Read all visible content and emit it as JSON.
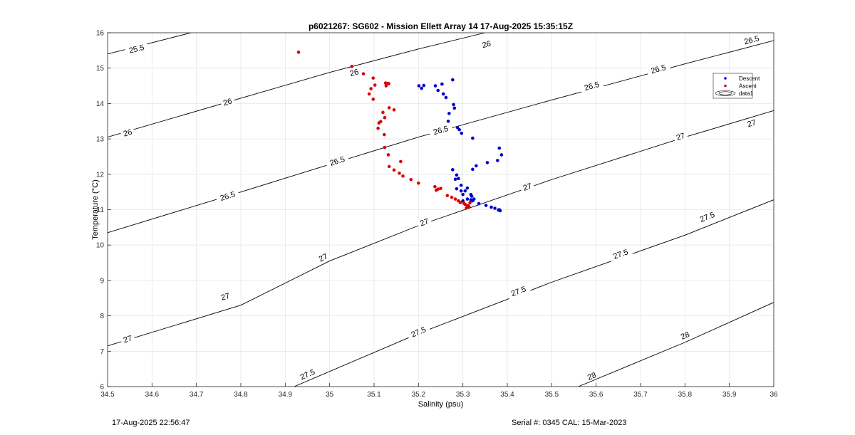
{
  "chart_data": {
    "type": "scatter",
    "title": "p6021267: SG602 - Mission Ellett Array 14 17-Aug-2025 15:35:15Z",
    "xlabel": "Salinity (psu)",
    "ylabel": "Temperature (°C)",
    "xlim": [
      34.5,
      36
    ],
    "ylim": [
      6,
      16
    ],
    "x_ticks": [
      34.5,
      34.6,
      34.7,
      34.8,
      34.9,
      35,
      35.1,
      35.2,
      35.3,
      35.4,
      35.5,
      35.6,
      35.7,
      35.8,
      35.9,
      36
    ],
    "x_tick_labels": [
      "34.5",
      "34.6",
      "34.7",
      "34.8",
      "34.9",
      "35",
      "35.1",
      "35.2",
      "35.3",
      "35.4",
      "35.5",
      "35.6",
      "35.7",
      "35.8",
      "35.9",
      "36"
    ],
    "y_ticks": [
      6,
      7,
      8,
      9,
      10,
      11,
      12,
      13,
      14,
      15,
      16
    ],
    "y_tick_labels": [
      "6",
      "7",
      "8",
      "9",
      "10",
      "11",
      "12",
      "13",
      "14",
      "15",
      "16"
    ],
    "grid": true,
    "legend_position": "top-right",
    "legend": [
      {
        "label": "Descent",
        "color": "#0000cc"
      },
      {
        "label": "Ascent",
        "color": "#dd0000"
      },
      {
        "label": "data1",
        "color": "#000000"
      }
    ],
    "colors": {
      "descent": "#0000cc",
      "ascent": "#dd0000",
      "contour": "#000000",
      "grid": "#e6e6e6"
    },
    "series": [
      {
        "name": "Descent",
        "color": "#0000cc",
        "points": [
          [
            35.201,
            14.5
          ],
          [
            35.207,
            14.43
          ],
          [
            35.212,
            14.51
          ],
          [
            35.238,
            14.5
          ],
          [
            35.244,
            14.37
          ],
          [
            35.253,
            14.55
          ],
          [
            35.256,
            14.27
          ],
          [
            35.262,
            14.17
          ],
          [
            35.277,
            14.67
          ],
          [
            35.279,
            13.97
          ],
          [
            35.281,
            13.87
          ],
          [
            35.269,
            13.72
          ],
          [
            35.267,
            13.5
          ],
          [
            35.288,
            13.32
          ],
          [
            35.292,
            13.26
          ],
          [
            35.297,
            13.16
          ],
          [
            35.322,
            13.02
          ],
          [
            35.382,
            12.74
          ],
          [
            35.387,
            12.55
          ],
          [
            35.378,
            12.39
          ],
          [
            35.355,
            12.33
          ],
          [
            35.33,
            12.24
          ],
          [
            35.322,
            12.14
          ],
          [
            35.277,
            12.13
          ],
          [
            35.286,
            11.98
          ],
          [
            35.283,
            11.86
          ],
          [
            35.29,
            11.88
          ],
          [
            35.286,
            11.59
          ],
          [
            35.296,
            11.69
          ],
          [
            35.296,
            11.53
          ],
          [
            35.305,
            11.53
          ],
          [
            35.31,
            11.61
          ],
          [
            35.3,
            11.43
          ],
          [
            35.31,
            11.3
          ],
          [
            35.318,
            11.28
          ],
          [
            35.322,
            11.25
          ],
          [
            35.325,
            11.3
          ],
          [
            35.32,
            11.38
          ],
          [
            35.318,
            11.43
          ],
          [
            35.3,
            11.25
          ],
          [
            35.336,
            11.17
          ],
          [
            35.352,
            11.12
          ],
          [
            35.364,
            11.07
          ],
          [
            35.372,
            11.04
          ],
          [
            35.38,
            10.99
          ],
          [
            35.384,
            10.97
          ],
          [
            35.382,
            11.0
          ]
        ]
      },
      {
        "name": "Ascent",
        "color": "#dd0000",
        "points": [
          [
            34.93,
            15.45
          ],
          [
            35.05,
            15.05
          ],
          [
            35.076,
            14.84
          ],
          [
            35.098,
            14.72
          ],
          [
            35.102,
            14.52
          ],
          [
            35.093,
            14.42
          ],
          [
            35.089,
            14.27
          ],
          [
            35.098,
            14.12
          ],
          [
            35.127,
            14.5
          ],
          [
            35.126,
            14.58
          ],
          [
            35.133,
            14.56
          ],
          [
            35.132,
            14.57
          ],
          [
            35.12,
            13.75
          ],
          [
            35.134,
            13.88
          ],
          [
            35.145,
            13.82
          ],
          [
            35.124,
            13.6
          ],
          [
            35.115,
            13.49
          ],
          [
            35.111,
            13.45
          ],
          [
            35.109,
            13.3
          ],
          [
            35.123,
            13.12
          ],
          [
            35.124,
            12.76
          ],
          [
            35.132,
            12.55
          ],
          [
            35.134,
            12.22
          ],
          [
            35.145,
            12.12
          ],
          [
            35.16,
            12.36
          ],
          [
            35.157,
            12.03
          ],
          [
            35.165,
            11.95
          ],
          [
            35.183,
            11.85
          ],
          [
            35.2,
            11.75
          ],
          [
            35.237,
            11.65
          ],
          [
            35.24,
            11.55
          ],
          [
            35.244,
            11.58
          ],
          [
            35.25,
            11.6
          ],
          [
            35.265,
            11.4
          ],
          [
            35.275,
            11.35
          ],
          [
            35.283,
            11.3
          ],
          [
            35.29,
            11.25
          ],
          [
            35.294,
            11.2
          ],
          [
            35.302,
            11.18
          ],
          [
            35.305,
            11.15
          ],
          [
            35.31,
            11.1
          ],
          [
            35.312,
            11.12
          ],
          [
            35.308,
            11.05
          ],
          [
            35.314,
            11.07
          ],
          [
            35.316,
            11.2
          ]
        ]
      }
    ],
    "contours": [
      {
        "level": "25.5",
        "points": [
          [
            34.5,
            15.4
          ],
          [
            34.688,
            16.0
          ]
        ],
        "labels": [
          [
            34.565,
            15.55
          ]
        ]
      },
      {
        "level": "26",
        "points": [
          [
            34.5,
            13.05
          ],
          [
            34.8,
            14.15
          ],
          [
            35.0,
            14.88
          ],
          [
            35.2,
            15.54
          ],
          [
            35.35,
            16.0
          ]
        ],
        "labels": [
          [
            34.545,
            13.18
          ],
          [
            34.77,
            14.05
          ],
          [
            35.055,
            14.88
          ],
          [
            35.353,
            15.68
          ]
        ]
      },
      {
        "level": "26.5",
        "points": [
          [
            34.5,
            10.35
          ],
          [
            34.8,
            11.5
          ],
          [
            35.0,
            12.28
          ],
          [
            35.2,
            13.05
          ],
          [
            35.5,
            14.1
          ],
          [
            35.8,
            15.12
          ],
          [
            36.0,
            15.78
          ]
        ],
        "labels": [
          [
            34.77,
            11.39
          ],
          [
            35.017,
            12.38
          ],
          [
            35.25,
            13.25
          ],
          [
            35.74,
            14.98
          ],
          [
            35.59,
            14.5
          ],
          [
            35.95,
            15.8
          ]
        ]
      },
      {
        "level": "27",
        "points": [
          [
            34.5,
            7.15
          ],
          [
            34.8,
            8.3
          ],
          [
            35.0,
            9.55
          ],
          [
            35.2,
            10.55
          ],
          [
            35.5,
            11.85
          ],
          [
            35.8,
            13.05
          ],
          [
            36.0,
            13.8
          ]
        ],
        "labels": [
          [
            34.545,
            7.35
          ],
          [
            34.765,
            8.55
          ],
          [
            34.985,
            9.65
          ],
          [
            35.213,
            10.65
          ],
          [
            35.445,
            11.65
          ],
          [
            35.79,
            13.07
          ],
          [
            35.95,
            13.45
          ]
        ]
      },
      {
        "level": "27.5",
        "points": [
          [
            34.92,
            6.0
          ],
          [
            35.2,
            7.5
          ],
          [
            35.5,
            8.95
          ],
          [
            35.8,
            10.28
          ],
          [
            36.0,
            11.28
          ]
        ],
        "labels": [
          [
            34.95,
            6.35
          ],
          [
            35.2,
            7.55
          ],
          [
            35.425,
            8.7
          ],
          [
            35.655,
            9.75
          ],
          [
            35.85,
            10.8
          ]
        ]
      },
      {
        "level": "28",
        "points": [
          [
            35.56,
            6.0
          ],
          [
            35.8,
            7.25
          ],
          [
            36.0,
            8.38
          ]
        ],
        "labels": [
          [
            35.59,
            6.3
          ],
          [
            35.8,
            7.45
          ]
        ]
      }
    ]
  },
  "footer": {
    "timestamp": "17-Aug-2025 22:56:47",
    "serial": "Serial #: 0345  CAL: 15-Mar-2023"
  }
}
